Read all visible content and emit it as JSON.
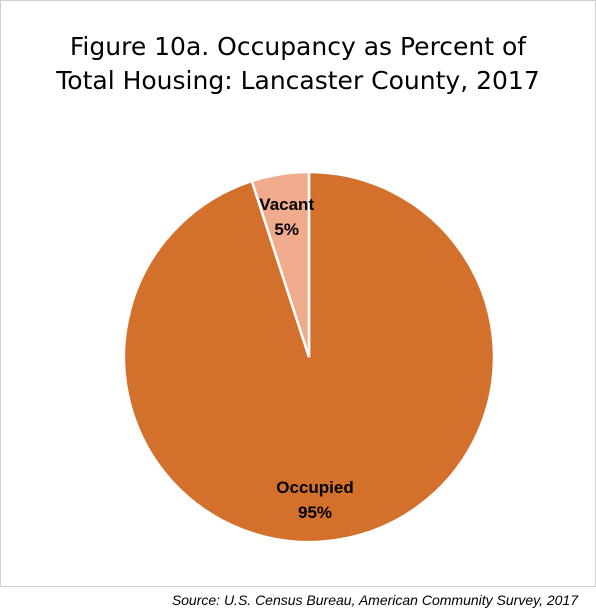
{
  "chart_data": {
    "type": "pie",
    "title": "Figure 10a. Occupancy as Percent of Total Housing: Lancaster County, 2017",
    "categories": [
      "Occupied",
      "Vacant"
    ],
    "values": [
      95,
      5
    ],
    "value_labels": [
      "95%",
      "5%"
    ],
    "colors": [
      "#d2702c",
      "#f0ab8c"
    ],
    "note": "Source: U.S. Census Bureau, American Community Survey, 2017"
  }
}
